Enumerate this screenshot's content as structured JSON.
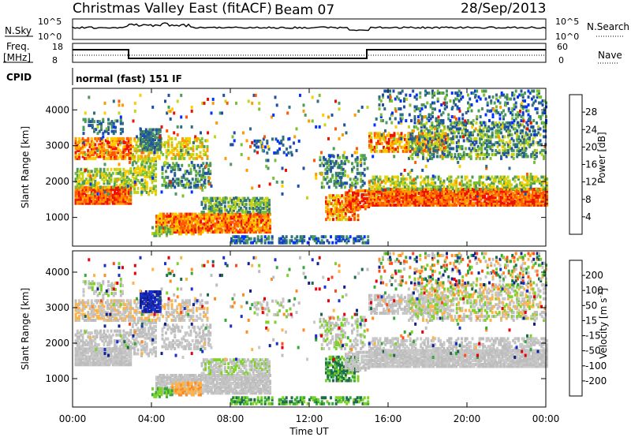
{
  "header": {
    "station": "Christmas Valley East (fitACF)",
    "beam": "Beam 07",
    "date": "28/Sep/2013"
  },
  "params": {
    "nsky_label": "N.Sky",
    "nsky_ticks": [
      "10^5",
      "10^0"
    ],
    "nsearch_label": "N.Search",
    "nsearch_ticks": [
      "10^5",
      "10^0"
    ],
    "freq_label": [
      "Freq.",
      "[MHz]"
    ],
    "freq_ticks": [
      "18",
      "8"
    ],
    "nave_label": "Nave",
    "nave_ticks": [
      "60",
      "0"
    ],
    "cpid_label": "CPID",
    "cpid_value": "normal (fast) 151 IF"
  },
  "colors": {
    "power": [
      "#0033ff",
      "#1f4fa6",
      "#2f6f7f",
      "#4c9a5e",
      "#7cbf35",
      "#c8d41a",
      "#ffcc00",
      "#ff9a00",
      "#ff5a00",
      "#ee1100"
    ],
    "velocity": [
      "#e8000b",
      "#ff4a1a",
      "#ff8a1f",
      "#ffb347",
      "#bdbdbd",
      "#c8c8c8",
      "#7ed22a",
      "#37a83a",
      "#1f6a4a",
      "#102090",
      "#1a2fcc"
    ]
  },
  "chart_data": [
    {
      "type": "heatmap",
      "name": "power",
      "ylabel": "Slant Range [km]",
      "xlabel": "",
      "x_ticks": [
        "00:00",
        "04:00",
        "08:00",
        "12:00",
        "16:00",
        "20:00",
        "00:00"
      ],
      "y_ticks": [
        "1000",
        "2000",
        "3000",
        "4000"
      ],
      "ylim": [
        200,
        4600
      ],
      "xlim_hours": [
        0,
        24
      ],
      "colorbar_label": "Power [dB]",
      "colorbar_ticks": [
        "28",
        "24",
        "20",
        "16",
        "12",
        "8",
        "4"
      ]
    },
    {
      "type": "heatmap",
      "name": "velocity",
      "ylabel": "Slant Range [km]",
      "xlabel": "Time UT",
      "x_ticks": [
        "00:00",
        "04:00",
        "08:00",
        "12:00",
        "16:00",
        "20:00",
        "00:00"
      ],
      "y_ticks": [
        "1000",
        "2000",
        "3000",
        "4000"
      ],
      "ylim": [
        200,
        4600
      ],
      "xlim_hours": [
        0,
        24
      ],
      "colorbar_label": "Velocity [m s^-1]",
      "colorbar_ticks": [
        "200",
        "100",
        "50",
        "15",
        "-15",
        "-50",
        "-100",
        "-200"
      ]
    }
  ]
}
